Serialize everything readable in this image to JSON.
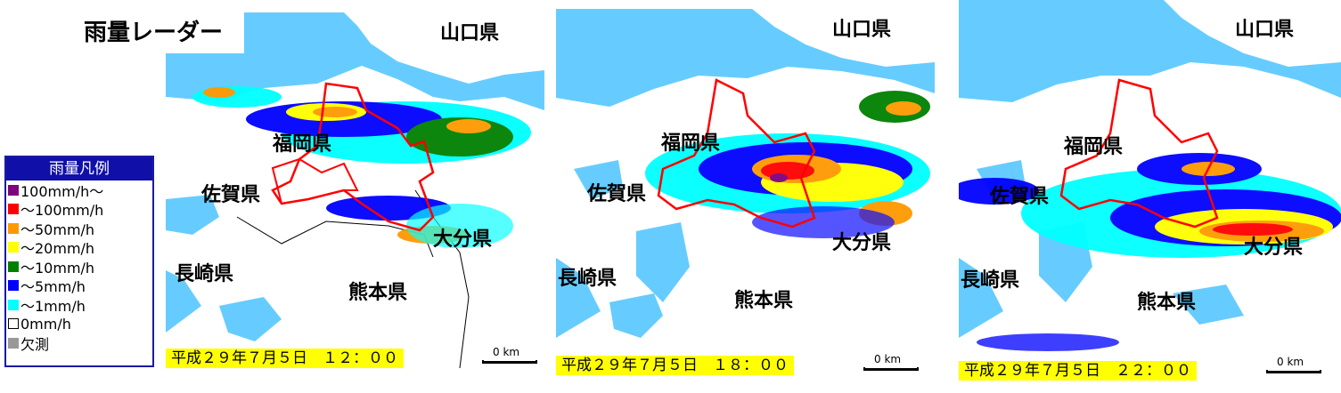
{
  "title": "雨量レーダー",
  "legend": {
    "header": "雨量凡例",
    "items": [
      {
        "label": "100mm/h〜",
        "color": "#800080"
      },
      {
        "label": "〜100mm/h",
        "color": "#ff0000"
      },
      {
        "label": "〜50mm/h",
        "color": "#ff9900"
      },
      {
        "label": "〜20mm/h",
        "color": "#ffff00"
      },
      {
        "label": "〜10mm/h",
        "color": "#008000"
      },
      {
        "label": "〜5mm/h",
        "color": "#0000ff"
      },
      {
        "label": "〜1mm/h",
        "color": "#00ffff"
      },
      {
        "label": "0mm/h",
        "color": "#ffffff"
      },
      {
        "label": "欠測",
        "color": "#999999"
      }
    ]
  },
  "colors": {
    "sea": "#66ccff",
    "land": "#ffffff",
    "boundary": "#ff0000"
  },
  "panels": [
    {
      "time": "平成２９年７月５日　１２：００",
      "scale": "0 km",
      "prefectures": {
        "yamaguchi": "山口県",
        "fukuoka": "福岡県",
        "saga": "佐賀県",
        "nagasaki": "長崎県",
        "kumamoto": "熊本県",
        "oita": "大分県"
      }
    },
    {
      "time": "平成２９年７月５日　１８：００",
      "scale": "0 km",
      "prefectures": {
        "yamaguchi": "山口県",
        "fukuoka": "福岡県",
        "saga": "佐賀県",
        "nagasaki": "長崎県",
        "kumamoto": "熊本県",
        "oita": "大分県"
      }
    },
    {
      "time": "平成２９年７月５日　２２：００",
      "scale": "0 km",
      "prefectures": {
        "yamaguchi": "山口県",
        "fukuoka": "福岡県",
        "saga": "佐賀県",
        "nagasaki": "長崎県",
        "kumamoto": "熊本県",
        "oita": "大分県"
      }
    }
  ]
}
